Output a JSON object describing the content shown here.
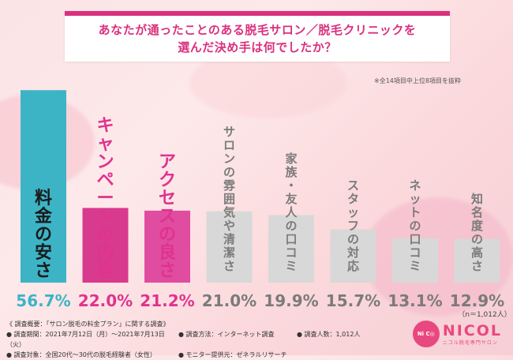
{
  "title_lines": [
    "あなたが通ったことのある脱毛サロン／脱毛クリニックを",
    "選んだ決め手は何でしたか？"
  ],
  "note": "※全14項目中上位8項目を抜粋",
  "sample_size": "（n＝1,012人）",
  "chart_data": {
    "type": "bar",
    "categories": [
      "料金の安さ",
      "キャンペーンの内容",
      "アクセスの良さ",
      "サロンの雰囲気や清潔さ",
      "家族・友人の口コミ",
      "スタッフの対応",
      "ネットの口コミ",
      "知名度の高さ"
    ],
    "value_labels": [
      "56.7%",
      "22.0%",
      "21.2%",
      "21.0%",
      "19.9%",
      "15.7%",
      "13.1%",
      "12.9%"
    ],
    "values": [
      56.7,
      22.0,
      21.2,
      21.0,
      19.9,
      15.7,
      13.1,
      12.9
    ],
    "unit": "%",
    "colors": {
      "bar": [
        "#3cb4c6",
        "#d83a8e",
        "#e04c9f",
        "#d8d8d8",
        "#d8d8d8",
        "#d8d8d8",
        "#d8d8d8",
        "#d8d8d8"
      ],
      "label": [
        "#1a1a1a",
        "#e0338d",
        "#e0338d",
        "#7b7b7b",
        "#7b7b7b",
        "#7b7b7b",
        "#7b7b7b",
        "#7b7b7b"
      ],
      "value": [
        "#3cb4c6",
        "#e0338d",
        "#e0338d",
        "#7b7b7b",
        "#7b7b7b",
        "#7b7b7b",
        "#7b7b7b",
        "#7b7b7b"
      ]
    }
  },
  "footer": {
    "heading": "《 調査概要：「サロン脱毛の料金プラン」に関する調査》",
    "period": "● 調査期間：2021年7月12日（月）～2021年7月13日（火）",
    "method": "● 調査方法：インターネット調査",
    "people": "● 調査人数：1,012人",
    "target": "● 調査対象：全国20代～30代の脱毛経験者（女性）",
    "provider": "● モニター提供元：ゼネラルリサーチ"
  },
  "logo": {
    "circle_text": "Ni C◎",
    "name": "NICOL",
    "subtitle": "ニコル脱毛専門サロン"
  }
}
